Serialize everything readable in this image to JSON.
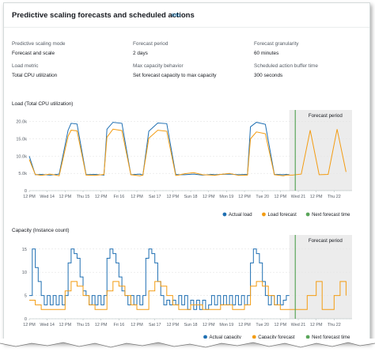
{
  "panel": {
    "title": "Predictive scaling forecasts and scheduled actions",
    "info_label": "Info"
  },
  "settings": [
    {
      "key": "Predictive scaling mode",
      "value": "Forecast and scale"
    },
    {
      "key": "Forecast period",
      "value": "2 days"
    },
    {
      "key": "Forecast granularity",
      "value": "60 minutes"
    },
    {
      "key": "Load metric",
      "value": "Total CPU utilization"
    },
    {
      "key": "Max capacity behavior",
      "value": "Set forecast capacity to max capacity"
    },
    {
      "key": "Scheduled action buffer time",
      "value": "300 seconds"
    }
  ],
  "colors": {
    "actual": "#1f6fb2",
    "forecast": "#f39c12",
    "next_forecast": "#5aa55a",
    "forecast_band": "#ececec",
    "link": "#0073bb"
  },
  "chart_data": [
    {
      "type": "line",
      "title": "Load (Total CPU utilization)",
      "x_tick_labels": [
        "12 PM",
        "Wed 14",
        "12 PM",
        "Thu 15",
        "12 PM",
        "Fri 16",
        "12 PM",
        "Sat 17",
        "12 PM",
        "Sun 18",
        "12 PM",
        "Mon 19",
        "12 PM",
        "Tue 20",
        "12 PM",
        "Wed 21",
        "12 PM",
        "Thu 22"
      ],
      "x_unit": "hours since first tick (12 PM, tick spacing 12 h)",
      "y_tick_labels": [
        "0",
        "5.0k",
        "10.0k",
        "15.0k",
        "20.0k"
      ],
      "ylim": [
        0,
        22000
      ],
      "forecast_period_label": "Forecast period",
      "forecast_period_x": [
        174,
        216
      ],
      "next_forecast_x": 178,
      "series": [
        {
          "name": "Actual load",
          "x": [
            0,
            4,
            8,
            14,
            20,
            26,
            28,
            32,
            38,
            44,
            50,
            52,
            56,
            62,
            68,
            74,
            76,
            80,
            86,
            92,
            98,
            100,
            104,
            110,
            116,
            122,
            124,
            128,
            134,
            140,
            146,
            148,
            152,
            158,
            164,
            170,
            172,
            174
          ],
          "y": [
            10000,
            4600,
            4700,
            4500,
            4800,
            17500,
            19500,
            19300,
            4600,
            4700,
            4500,
            17800,
            19800,
            19500,
            4600,
            4800,
            4500,
            17200,
            19600,
            19400,
            4700,
            4600,
            4600,
            4800,
            4500,
            4700,
            4600,
            4700,
            4800,
            4600,
            4700,
            18500,
            19800,
            19200,
            4700,
            4600,
            4700,
            4600
          ]
        },
        {
          "name": "Load forecast",
          "x": [
            0,
            4,
            8,
            14,
            20,
            26,
            28,
            32,
            38,
            44,
            50,
            52,
            56,
            62,
            68,
            74,
            76,
            80,
            86,
            92,
            98,
            100,
            104,
            110,
            116,
            122,
            124,
            128,
            134,
            140,
            146,
            148,
            152,
            158,
            164,
            170,
            172,
            176,
            182,
            188,
            194,
            200,
            206,
            212
          ],
          "y": [
            9000,
            4700,
            4400,
            4800,
            4300,
            15800,
            17500,
            17300,
            4500,
            4400,
            4700,
            15500,
            17800,
            17400,
            4600,
            4300,
            4500,
            15200,
            17500,
            17200,
            4400,
            4500,
            4900,
            5200,
            4600,
            4500,
            4400,
            4700,
            5000,
            4400,
            4500,
            15000,
            17000,
            16500,
            4600,
            4300,
            4500,
            4500,
            4800,
            17500,
            4600,
            4700,
            17800,
            5400
          ]
        }
      ],
      "legend": [
        "Actual load",
        "Load forecast",
        "Next forecast time"
      ],
      "legend_position": "bottom-right",
      "grid": "horizontal"
    },
    {
      "type": "line",
      "title": "Capacity (Instance count)",
      "x_tick_labels": [
        "12 PM",
        "Wed 14",
        "12 PM",
        "Thu 15",
        "12 PM",
        "Fri 16",
        "12 PM",
        "Sat 17",
        "12 PM",
        "Sun 18",
        "12 PM",
        "Mon 19",
        "12 PM",
        "Tue 20",
        "12 PM",
        "Wed 21",
        "12 PM",
        "Thu 22"
      ],
      "x_unit": "hours since first tick (12 PM, tick spacing 12 h)",
      "y_tick_labels": [
        "0",
        "5",
        "10",
        "15"
      ],
      "ylim": [
        0,
        17
      ],
      "forecast_period_label": "Forecast period",
      "forecast_period_x": [
        174,
        216
      ],
      "next_forecast_x": 178,
      "series": [
        {
          "name": "Actual capacity",
          "type": "step",
          "x": [
            0,
            2,
            4,
            6,
            8,
            10,
            12,
            14,
            16,
            18,
            20,
            22,
            24,
            26,
            28,
            30,
            32,
            34,
            36,
            38,
            40,
            42,
            44,
            46,
            48,
            50,
            52,
            54,
            56,
            58,
            60,
            62,
            64,
            66,
            68,
            70,
            72,
            74,
            76,
            78,
            80,
            82,
            84,
            86,
            88,
            90,
            92,
            94,
            96,
            98,
            100,
            102,
            104,
            106,
            108,
            110,
            112,
            114,
            116,
            118,
            120,
            122,
            124,
            126,
            128,
            130,
            132,
            134,
            136,
            138,
            140,
            142,
            144,
            146,
            148,
            150,
            152,
            154,
            156,
            158,
            160,
            162,
            164,
            166,
            168,
            170,
            172,
            174
          ],
          "y": [
            5,
            15,
            11,
            8,
            5,
            3,
            5,
            3,
            5,
            3,
            5,
            3,
            5,
            12,
            15,
            14,
            13,
            9,
            6,
            5,
            3,
            5,
            3,
            5,
            3,
            5,
            13,
            15,
            14,
            12,
            9,
            6,
            5,
            3,
            5,
            3,
            5,
            3,
            5,
            13,
            15,
            14,
            12,
            8,
            5,
            3,
            4,
            3,
            4,
            3,
            5,
            3,
            5,
            2,
            4,
            2,
            4,
            2,
            4,
            2,
            3,
            5,
            3,
            5,
            3,
            5,
            3,
            5,
            3,
            5,
            3,
            5,
            3,
            5,
            12,
            15,
            14,
            12,
            8,
            5,
            3,
            5,
            3,
            5,
            3,
            4,
            5,
            5
          ]
        },
        {
          "name": "Capacity forecast",
          "type": "step",
          "x": [
            0,
            4,
            8,
            12,
            16,
            20,
            24,
            28,
            32,
            36,
            40,
            44,
            48,
            52,
            56,
            60,
            64,
            68,
            72,
            76,
            80,
            84,
            88,
            92,
            96,
            100,
            104,
            108,
            112,
            116,
            120,
            124,
            128,
            132,
            136,
            140,
            144,
            148,
            152,
            156,
            160,
            164,
            168,
            172,
            174,
            178,
            186,
            192,
            196,
            200,
            204,
            208,
            212
          ],
          "y": [
            4,
            3,
            2,
            2,
            2,
            2,
            6,
            8,
            7,
            5,
            3,
            2,
            2,
            6,
            8,
            7,
            5,
            3,
            2,
            2,
            6,
            8,
            7,
            5,
            3,
            2,
            2,
            3,
            3,
            2,
            2,
            2,
            3,
            3,
            2,
            2,
            3,
            7,
            8,
            7,
            5,
            3,
            2,
            2,
            2,
            2,
            5,
            8,
            2,
            2,
            5,
            8,
            5
          ]
        }
      ],
      "legend": [
        "Actual capacity",
        "Capacity forecast",
        "Next forecast time"
      ],
      "legend_position": "bottom-right",
      "grid": "horizontal"
    }
  ]
}
